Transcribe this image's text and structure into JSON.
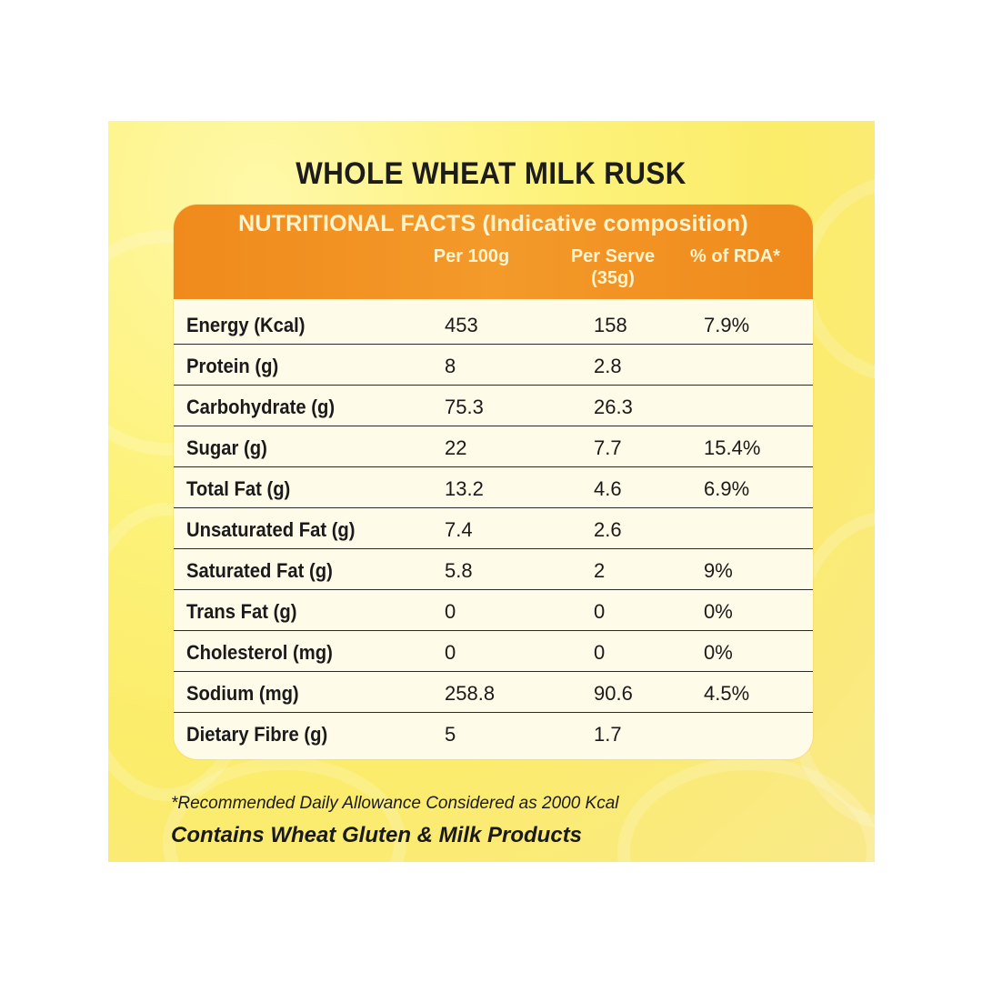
{
  "title": "WHOLE WHEAT MILK RUSK",
  "table": {
    "header": "NUTRITIONAL FACTS (Indicative composition)",
    "col_per100": "Per 100g",
    "col_serve_1": "Per Serve",
    "col_serve_2": "(35g)",
    "col_rda": "% of RDA*",
    "rows": [
      {
        "name": "Energy (Kcal)",
        "per100": "453",
        "serve": "158",
        "rda": "7.9%"
      },
      {
        "name": "Protein (g)",
        "per100": "8",
        "serve": "2.8",
        "rda": ""
      },
      {
        "name": "Carbohydrate (g)",
        "per100": "75.3",
        "serve": "26.3",
        "rda": ""
      },
      {
        "name": "Sugar (g)",
        "per100": "22",
        "serve": "7.7",
        "rda": "15.4%"
      },
      {
        "name": "Total Fat (g)",
        "per100": "13.2",
        "serve": "4.6",
        "rda": "6.9%"
      },
      {
        "name": "Unsaturated Fat (g)",
        "per100": "7.4",
        "serve": "2.6",
        "rda": ""
      },
      {
        "name": "Saturated Fat (g)",
        "per100": "5.8",
        "serve": "2",
        "rda": "9%"
      },
      {
        "name": "Trans Fat (g)",
        "per100": "0",
        "serve": "0",
        "rda": "0%"
      },
      {
        "name": "Cholesterol (mg)",
        "per100": "0",
        "serve": "0",
        "rda": "0%"
      },
      {
        "name": "Sodium (mg)",
        "per100": "258.8",
        "serve": "90.6",
        "rda": "4.5%"
      },
      {
        "name": "Dietary Fibre (g)",
        "per100": "5",
        "serve": "1.7",
        "rda": ""
      }
    ]
  },
  "footnote": "*Recommended Daily Allowance Considered as 2000 Kcal",
  "allergen": "Contains Wheat Gluten & Milk Products",
  "colors": {
    "panel": "#fbec6a",
    "header": "#f08a1c",
    "card": "#fffbe9"
  }
}
